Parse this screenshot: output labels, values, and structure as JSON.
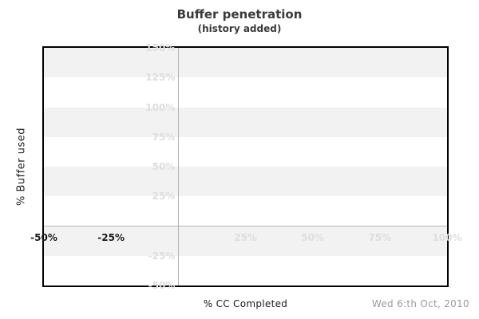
{
  "header": {
    "title": "Buffer penetration",
    "subtitle": "(history added)"
  },
  "footer": {
    "x_axis_title": "% CC Completed",
    "date": "Wed 6:th Oct, 2010"
  },
  "y_axis_title": "% Buffer used",
  "chart_data": {
    "type": "line",
    "title": "Buffer penetration",
    "subtitle": "(history added)",
    "xlabel": "% CC Completed",
    "ylabel": "% Buffer used",
    "xlim": [
      -50,
      100
    ],
    "ylim": [
      -50,
      150
    ],
    "x_ticks": [
      {
        "value": -50,
        "label": "-50%",
        "emphasis": true
      },
      {
        "value": -25,
        "label": "-25%",
        "emphasis": true
      },
      {
        "value": 25,
        "label": "25%",
        "emphasis": false
      },
      {
        "value": 50,
        "label": "50%",
        "emphasis": false
      },
      {
        "value": 75,
        "label": "75%",
        "emphasis": false
      },
      {
        "value": 100,
        "label": "100%",
        "emphasis": false
      }
    ],
    "y_ticks": [
      {
        "value": 150,
        "label": "150%"
      },
      {
        "value": 125,
        "label": "125%"
      },
      {
        "value": 100,
        "label": "100%"
      },
      {
        "value": 75,
        "label": "75%"
      },
      {
        "value": 50,
        "label": "50%"
      },
      {
        "value": 25,
        "label": "25%"
      },
      {
        "value": -25,
        "label": "-25%"
      },
      {
        "value": -50,
        "label": "-50%"
      }
    ],
    "bands": [
      [
        150,
        125
      ],
      [
        100,
        75
      ],
      [
        50,
        25
      ],
      [
        0,
        -25
      ]
    ],
    "zero_lines": {
      "x": 0,
      "y": 0
    },
    "series": [],
    "legend_position": "none",
    "grid": "alternating horizontal bands every 25%",
    "annotation": "Wed 6:th Oct, 2010",
    "colors": {
      "band": "#f2f2f2",
      "tick_faint": "#dedede",
      "tick_emphasis": "#1a1a1a",
      "zero_line": "#b3b3b3",
      "plot_border": "#000000",
      "title_text": "#3a3a3a",
      "axis_title_text": "#1a1a1a",
      "date_text": "#9a9a9a",
      "background": "#ffffff"
    }
  }
}
